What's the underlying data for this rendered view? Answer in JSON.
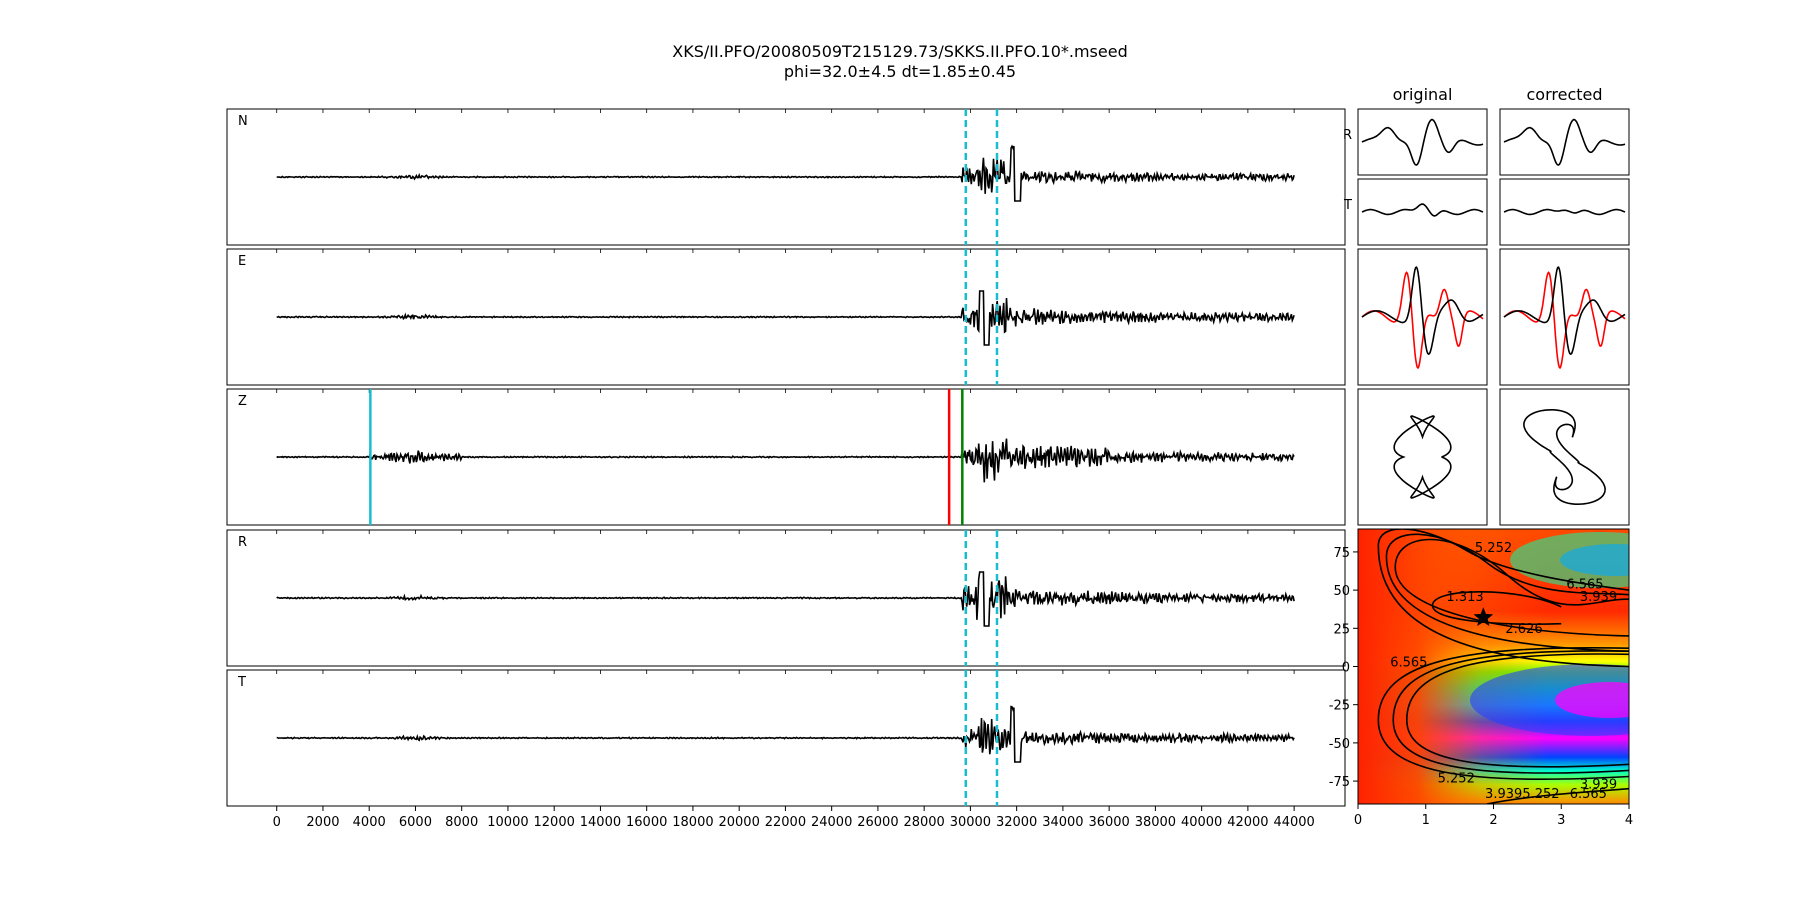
{
  "figure": {
    "title": "XKS/II.PFO/20080509T215129.73/SKKS.II.PFO.10*.mseed",
    "subtitle": "phi=32.0±4.5 dt=1.85±0.45"
  },
  "chart_data": [
    {
      "type": "line",
      "id": "traces",
      "traces": [
        "N",
        "E",
        "Z",
        "R",
        "T"
      ],
      "x_ticks": [
        0,
        2000,
        4000,
        6000,
        8000,
        10000,
        12000,
        14000,
        16000,
        18000,
        20000,
        22000,
        24000,
        26000,
        28000,
        30000,
        32000,
        34000,
        36000,
        38000,
        40000,
        42000,
        44000
      ],
      "xlim": [
        -2150,
        46200
      ],
      "data_range": [
        0,
        44000
      ],
      "window_lines": {
        "color": "#17becf",
        "style": "dashed",
        "x": [
          29800,
          31150
        ],
        "traces": [
          "N",
          "E",
          "R",
          "T"
        ]
      },
      "picks": [
        {
          "trace": "Z",
          "x": 4050,
          "color": "#17becf"
        },
        {
          "trace": "Z",
          "x": 29080,
          "color": "#ff0000"
        },
        {
          "trace": "Z",
          "x": 29650,
          "color": "#008000"
        }
      ],
      "trace_color": "#000000"
    },
    {
      "type": "line",
      "id": "window-waveforms",
      "column_titles": [
        "original",
        "corrected"
      ],
      "row_labels": [
        "R",
        "T"
      ],
      "colors": [
        "#000000",
        "#ff0000"
      ]
    },
    {
      "type": "heatmap",
      "id": "error-surface",
      "x_ticks": [
        0,
        1,
        2,
        3,
        4
      ],
      "y_ticks": [
        75,
        50,
        25,
        0,
        -25,
        -50,
        -75
      ],
      "xlim": [
        0,
        4
      ],
      "ylim": [
        -90,
        90
      ],
      "contour_levels": [
        "1.313",
        "2.626",
        "3.939",
        "5.252",
        "6.565"
      ],
      "contour_labels": [
        {
          "text": "5.252",
          "x": 2.0,
          "y": 75
        },
        {
          "text": "6.565",
          "x": 3.35,
          "y": 51
        },
        {
          "text": "3.939",
          "x": 3.55,
          "y": 43
        },
        {
          "text": "1.313",
          "x": 1.58,
          "y": 43
        },
        {
          "text": "2.626",
          "x": 2.45,
          "y": 22
        },
        {
          "text": "6.565",
          "x": 0.75,
          "y": 0
        },
        {
          "text": "5.252",
          "x": 1.45,
          "y": -76
        },
        {
          "text": "3.939",
          "x": 3.55,
          "y": -80
        },
        {
          "text": "3.939",
          "x": 2.15,
          "y": -103
        },
        {
          "text": "5.252",
          "x": 2.7,
          "y": -103
        },
        {
          "text": "6.565",
          "x": 3.4,
          "y": -104
        }
      ],
      "best_fit": {
        "dt": 1.85,
        "phi": 32.0,
        "marker": "star"
      }
    }
  ]
}
